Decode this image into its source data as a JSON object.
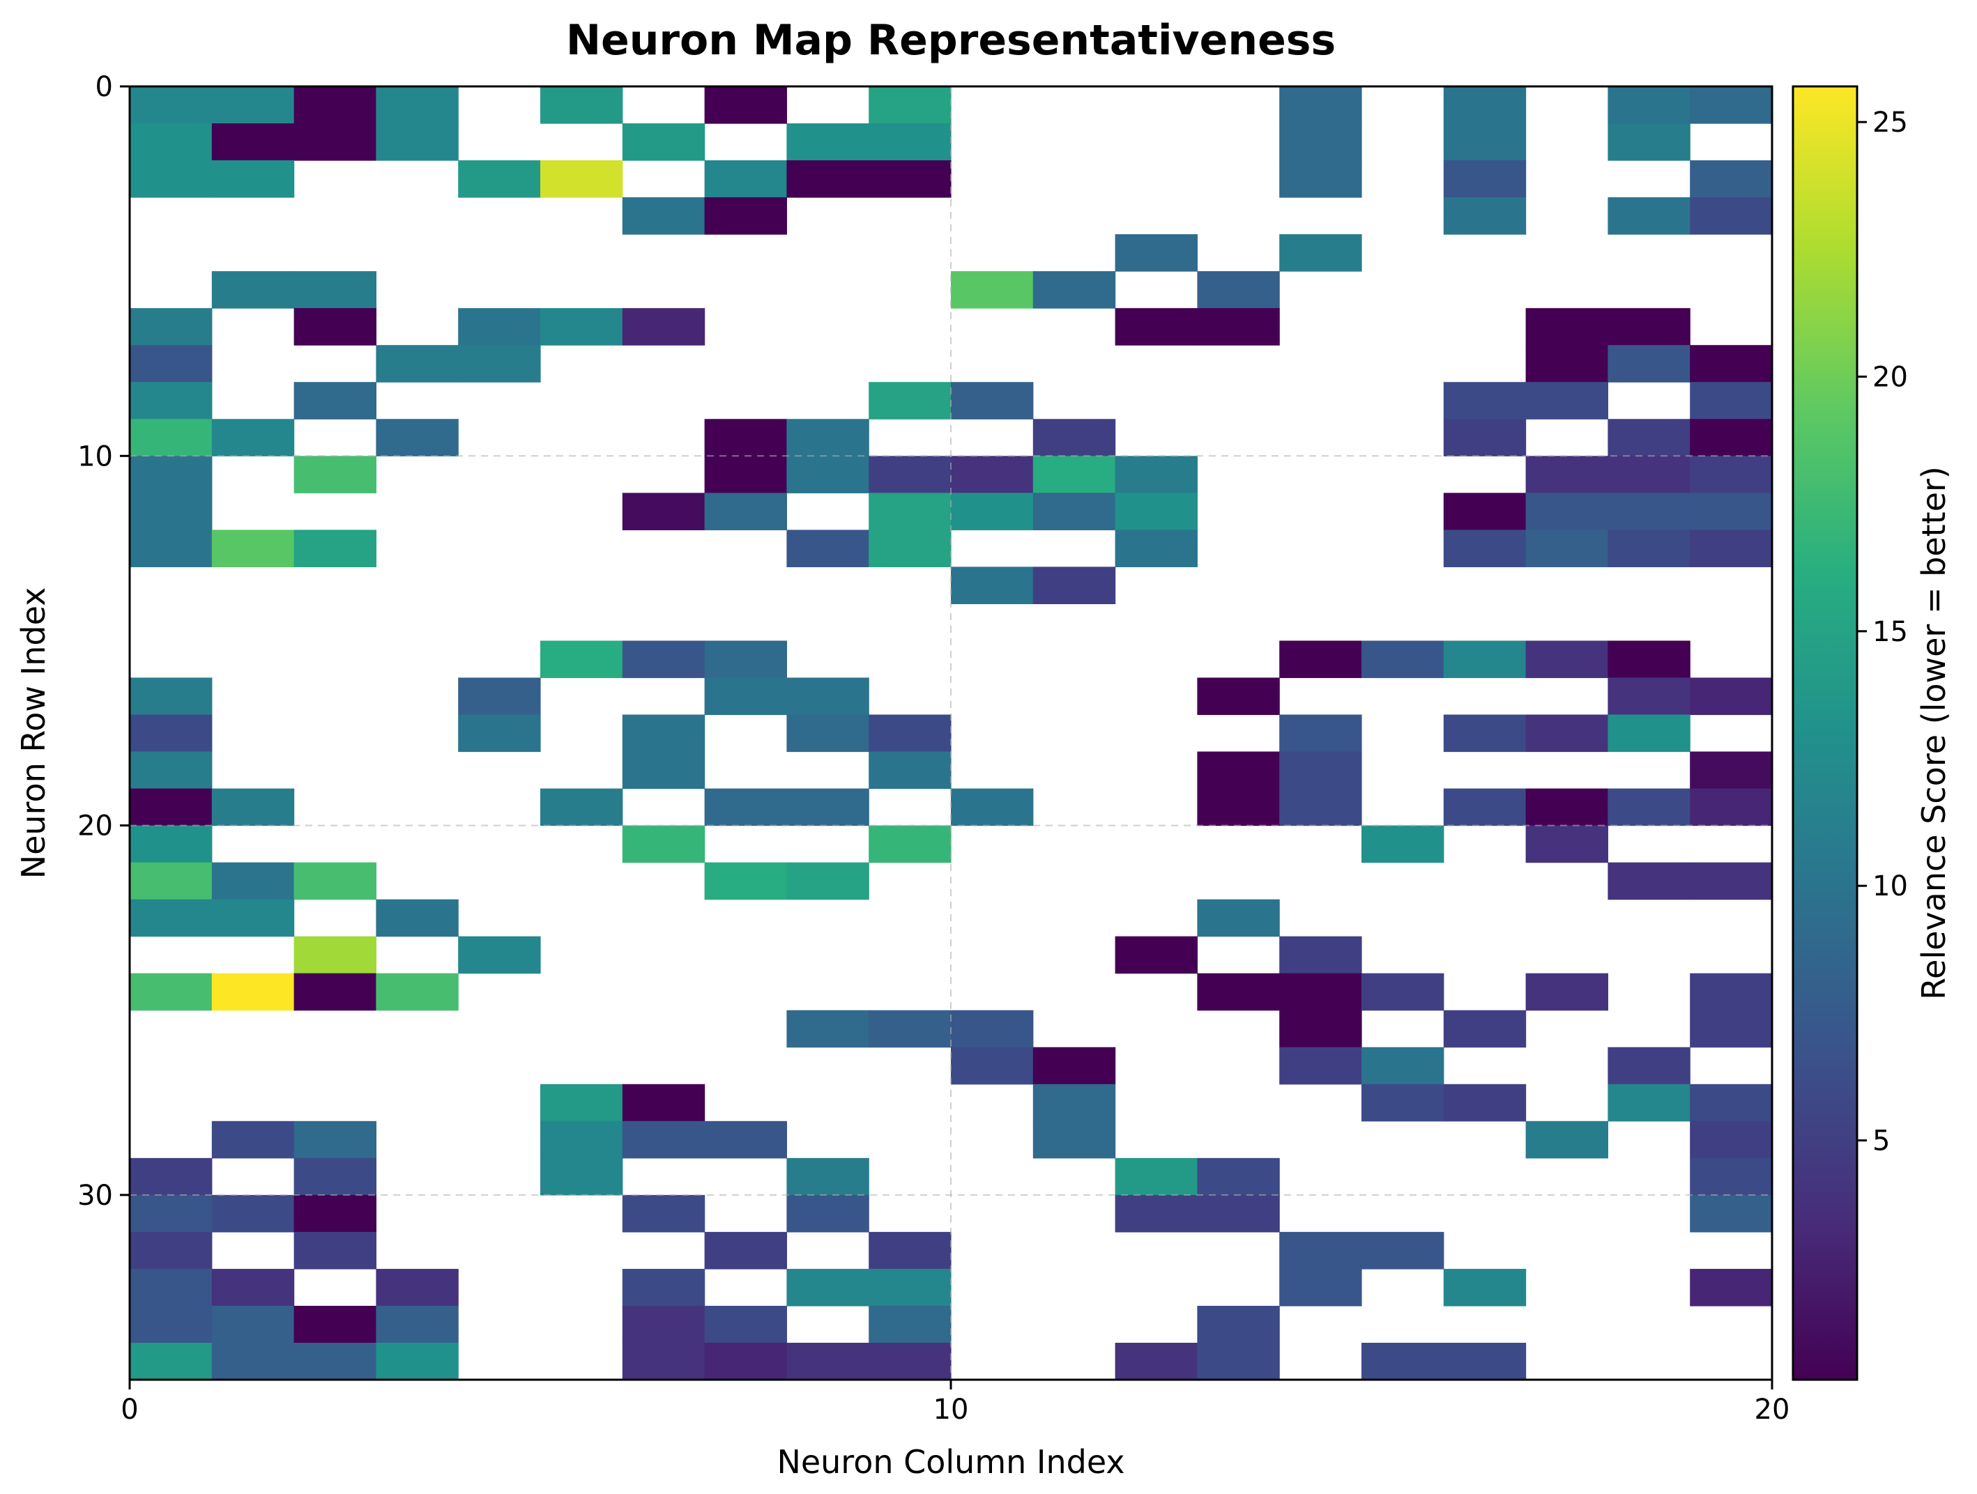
{
  "chart_data": {
    "type": "heatmap",
    "title": "Neuron Map Representativeness",
    "xlabel": "Neuron Column Index",
    "ylabel": "Neuron Row Index",
    "colorbar_label": "Relevance Score (lower = better)",
    "colormap": "viridis",
    "xlim": [
      0,
      20
    ],
    "ylim": [
      35,
      0
    ],
    "n_cols": 20,
    "n_rows": 35,
    "x_ticks": [
      0,
      10,
      20
    ],
    "y_ticks": [
      0,
      10,
      20,
      30
    ],
    "color_range": [
      0.3,
      25.7
    ],
    "colorbar_ticks": [
      5,
      10,
      15,
      20,
      25
    ],
    "grid": true,
    "missing_color": "#ffffff",
    "values": [
      [
        12,
        12,
        0.3,
        12,
        null,
        14,
        null,
        0.3,
        null,
        15,
        null,
        null,
        null,
        null,
        9,
        null,
        10,
        null,
        10,
        9
      ],
      [
        13,
        0.3,
        0.3,
        12,
        null,
        null,
        14,
        null,
        13,
        13,
        null,
        null,
        null,
        null,
        9,
        null,
        10,
        null,
        11,
        null
      ],
      [
        13,
        13,
        null,
        null,
        14,
        24,
        null,
        12,
        0.3,
        0.3,
        null,
        null,
        null,
        null,
        9,
        null,
        7,
        null,
        null,
        8
      ],
      [
        null,
        null,
        null,
        null,
        null,
        null,
        10,
        0.3,
        null,
        null,
        null,
        null,
        null,
        null,
        null,
        null,
        10,
        null,
        10,
        6
      ],
      [
        null,
        null,
        null,
        null,
        null,
        null,
        null,
        null,
        null,
        null,
        null,
        null,
        9,
        null,
        11,
        null,
        null,
        null,
        null,
        null
      ],
      [
        null,
        11,
        11,
        null,
        null,
        null,
        null,
        null,
        null,
        null,
        19,
        9,
        null,
        8,
        null,
        null,
        null,
        null,
        null,
        null
      ],
      [
        11,
        null,
        0.3,
        null,
        10,
        12,
        3,
        null,
        null,
        null,
        null,
        null,
        0.3,
        0.3,
        null,
        null,
        null,
        0.3,
        0.3,
        null
      ],
      [
        7,
        null,
        null,
        11,
        11,
        null,
        null,
        null,
        null,
        null,
        null,
        null,
        null,
        null,
        null,
        null,
        null,
        0.3,
        7,
        0.3
      ],
      [
        12,
        null,
        9,
        null,
        null,
        null,
        null,
        null,
        null,
        15,
        8,
        null,
        null,
        null,
        null,
        null,
        6,
        6,
        null,
        6
      ],
      [
        17,
        12,
        null,
        9,
        null,
        null,
        null,
        0.3,
        10,
        null,
        null,
        5,
        null,
        null,
        null,
        null,
        5,
        null,
        5,
        0.3
      ],
      [
        10,
        null,
        18,
        null,
        null,
        null,
        null,
        0.3,
        10,
        5,
        4,
        16,
        11,
        null,
        null,
        null,
        null,
        4,
        4,
        5
      ],
      [
        10,
        null,
        null,
        null,
        null,
        null,
        1,
        9,
        null,
        15,
        13,
        9,
        13,
        null,
        null,
        null,
        0.3,
        7,
        7,
        7
      ],
      [
        10,
        19,
        15,
        null,
        null,
        null,
        null,
        null,
        7,
        15,
        null,
        null,
        10,
        null,
        null,
        null,
        6,
        8,
        6,
        5
      ],
      [
        null,
        null,
        null,
        null,
        null,
        null,
        null,
        null,
        null,
        null,
        10,
        5,
        null,
        null,
        null,
        null,
        null,
        null,
        null,
        null
      ],
      [
        null,
        null,
        null,
        null,
        null,
        null,
        null,
        null,
        null,
        null,
        null,
        null,
        null,
        null,
        null,
        null,
        null,
        null,
        null,
        null
      ],
      [
        null,
        null,
        null,
        null,
        null,
        16,
        7,
        9,
        null,
        null,
        null,
        null,
        null,
        null,
        0.3,
        7,
        12,
        4,
        0.3,
        null
      ],
      [
        11,
        null,
        null,
        null,
        8,
        null,
        null,
        10,
        10,
        null,
        null,
        null,
        null,
        0.3,
        null,
        null,
        null,
        null,
        4,
        3
      ],
      [
        6,
        null,
        null,
        null,
        10,
        null,
        10,
        null,
        9,
        6,
        null,
        null,
        null,
        null,
        7,
        null,
        6,
        4,
        13,
        null
      ],
      [
        11,
        null,
        null,
        null,
        null,
        null,
        10,
        null,
        null,
        10,
        null,
        null,
        null,
        0.3,
        6,
        null,
        null,
        null,
        null,
        1
      ],
      [
        0.3,
        11,
        null,
        null,
        null,
        11,
        null,
        9,
        9,
        null,
        10,
        null,
        null,
        0.3,
        6,
        null,
        6,
        0.3,
        6,
        3
      ],
      [
        13,
        null,
        null,
        null,
        null,
        null,
        17,
        null,
        null,
        17,
        null,
        null,
        null,
        null,
        null,
        13,
        null,
        4,
        null,
        null
      ],
      [
        18,
        10,
        18,
        null,
        null,
        null,
        null,
        16,
        15,
        null,
        null,
        null,
        null,
        null,
        null,
        null,
        null,
        null,
        4,
        4
      ],
      [
        12,
        12,
        null,
        10,
        null,
        null,
        null,
        null,
        null,
        null,
        null,
        null,
        null,
        10,
        null,
        null,
        null,
        null,
        null,
        null
      ],
      [
        null,
        null,
        22,
        null,
        12,
        null,
        null,
        null,
        null,
        null,
        null,
        null,
        0.3,
        null,
        5,
        null,
        null,
        null,
        null,
        null
      ],
      [
        18,
        25.7,
        0.3,
        18,
        null,
        null,
        null,
        null,
        null,
        null,
        null,
        null,
        null,
        0.3,
        0.3,
        5,
        null,
        4,
        null,
        5
      ],
      [
        null,
        null,
        null,
        null,
        null,
        null,
        null,
        null,
        9,
        8,
        7,
        null,
        null,
        null,
        0.3,
        null,
        5,
        null,
        null,
        5
      ],
      [
        null,
        null,
        null,
        null,
        null,
        null,
        null,
        null,
        null,
        null,
        6,
        0.3,
        null,
        null,
        5,
        10,
        null,
        null,
        5,
        null
      ],
      [
        null,
        null,
        null,
        null,
        null,
        14,
        0.3,
        null,
        null,
        null,
        null,
        9,
        null,
        null,
        null,
        6,
        5,
        null,
        12,
        6
      ],
      [
        null,
        6,
        9,
        null,
        null,
        12,
        7,
        7,
        null,
        null,
        null,
        9,
        null,
        null,
        null,
        null,
        null,
        11,
        null,
        5
      ],
      [
        5,
        null,
        6,
        null,
        null,
        12,
        null,
        null,
        11,
        null,
        null,
        null,
        14,
        6,
        null,
        null,
        null,
        null,
        null,
        6
      ],
      [
        7,
        6,
        0.3,
        null,
        null,
        null,
        6,
        null,
        7,
        null,
        null,
        null,
        5,
        5,
        null,
        null,
        null,
        null,
        null,
        8
      ],
      [
        5,
        null,
        5,
        null,
        null,
        null,
        null,
        5,
        null,
        5,
        null,
        null,
        null,
        null,
        7,
        7,
        null,
        null,
        null,
        null
      ],
      [
        7,
        4,
        null,
        4,
        null,
        null,
        6,
        null,
        12,
        12,
        null,
        null,
        null,
        null,
        7,
        null,
        12,
        null,
        null,
        3
      ],
      [
        7,
        8,
        0.3,
        8,
        null,
        null,
        4,
        6,
        null,
        9,
        null,
        null,
        null,
        6,
        null,
        null,
        null,
        null,
        null,
        null
      ],
      [
        14,
        8,
        8,
        13,
        null,
        null,
        4,
        3,
        4,
        4,
        null,
        null,
        4,
        6,
        null,
        6,
        6,
        null,
        null,
        null
      ]
    ]
  }
}
